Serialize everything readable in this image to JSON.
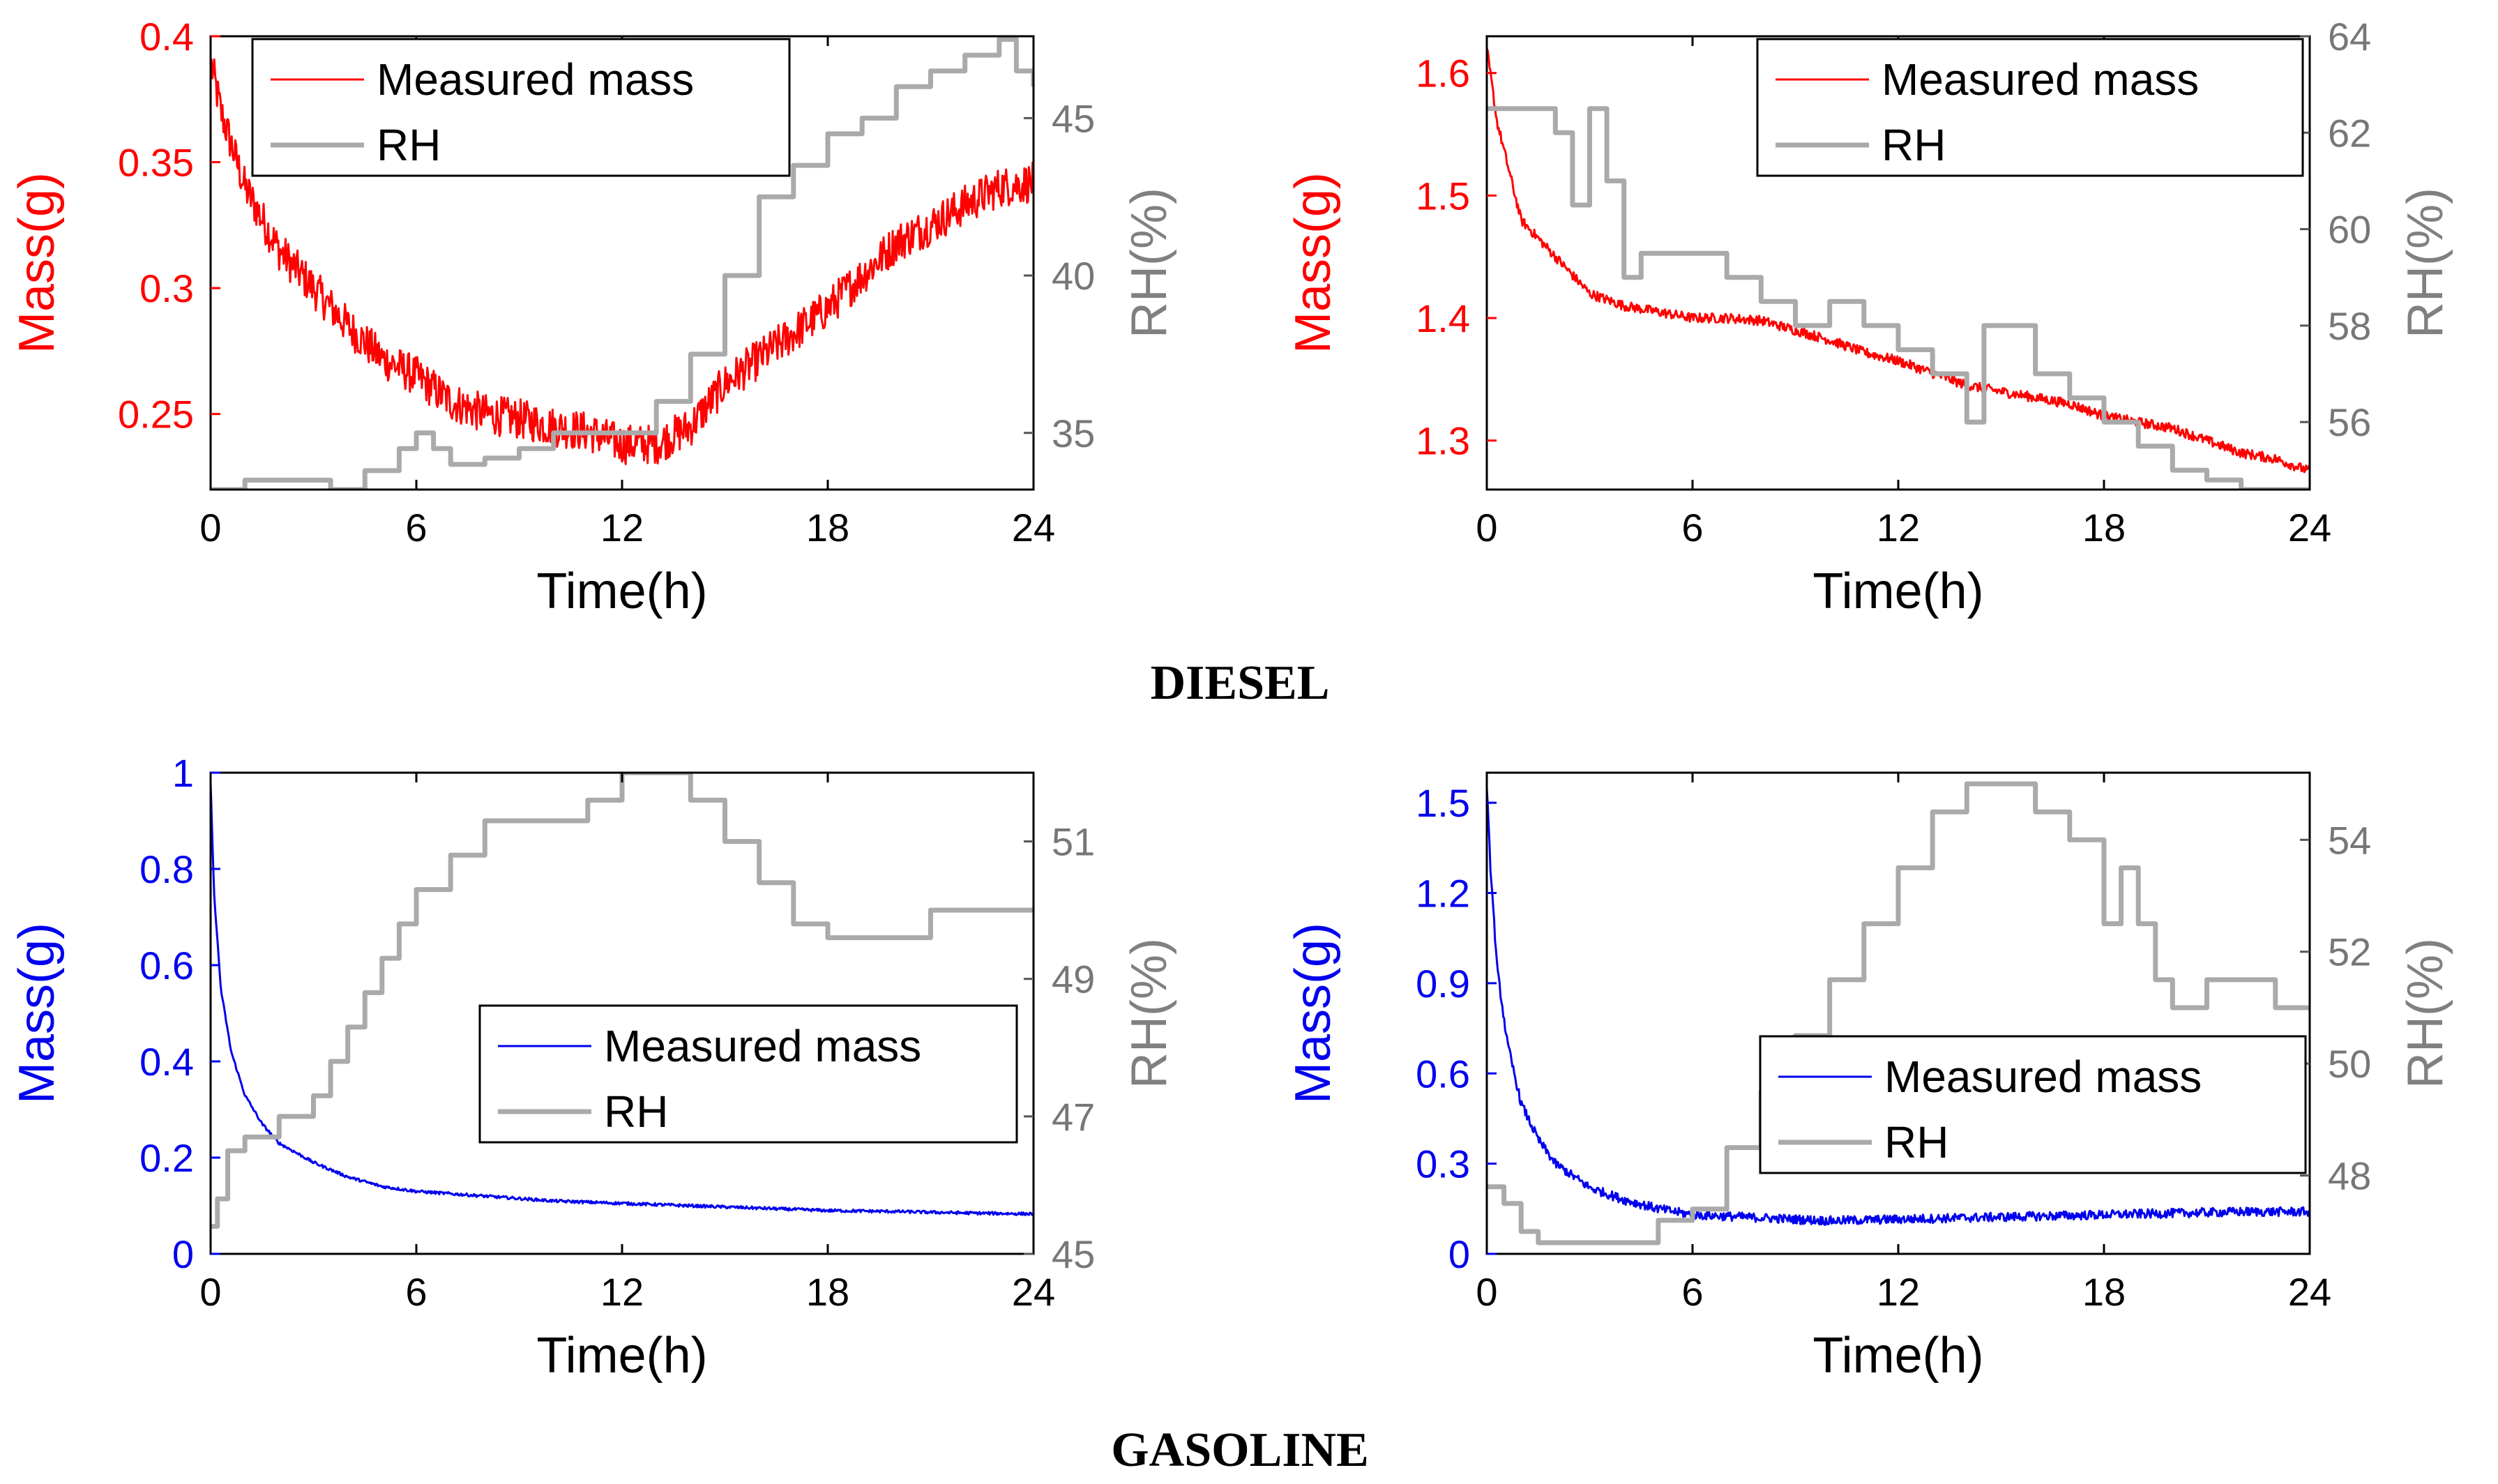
{
  "group_titles": {
    "diesel": "DIESEL",
    "gasoline": "GASOLINE"
  },
  "colors": {
    "diesel_mass": "#ff0000",
    "gasoline_mass": "#0000ee",
    "rh": "#aaaaaa",
    "axis": "#000000"
  },
  "chart_data": [
    {
      "type": "line",
      "group": "DIESEL",
      "title": "",
      "xlabel": "Time(h)",
      "ylabel": "Mass(g)",
      "y2label": "RH(%)",
      "xlim": [
        0,
        24
      ],
      "xticks": [
        0,
        6,
        12,
        18,
        24
      ],
      "ylim": [
        0.22,
        0.4
      ],
      "yticks": [
        0.25,
        0.3,
        0.35,
        0.4
      ],
      "y2lim": [
        33.2,
        47.6
      ],
      "y2ticks": [
        35,
        40,
        45
      ],
      "legend": {
        "position": "top-center",
        "entries": [
          "Measured mass",
          "RH"
        ]
      },
      "series": [
        {
          "name": "Measured mass",
          "axis": "left",
          "color": "#ff0000",
          "noise": 0.008,
          "x": [
            0,
            0.3,
            1,
            2,
            3,
            4,
            5,
            6,
            7,
            8,
            9,
            10,
            11,
            12,
            13,
            14,
            15,
            16,
            17,
            18,
            19,
            20,
            21,
            22,
            23,
            24
          ],
          "y": [
            0.39,
            0.37,
            0.34,
            0.315,
            0.3,
            0.285,
            0.272,
            0.265,
            0.255,
            0.25,
            0.248,
            0.245,
            0.243,
            0.238,
            0.238,
            0.245,
            0.262,
            0.272,
            0.282,
            0.292,
            0.305,
            0.318,
            0.325,
            0.333,
            0.34,
            0.342
          ]
        },
        {
          "name": "RH",
          "axis": "right",
          "color": "#aaaaaa",
          "step": true,
          "x": [
            0,
            1,
            2,
            3.5,
            4.5,
            5.5,
            6,
            6.5,
            7,
            8,
            9,
            10,
            11,
            12,
            13,
            14,
            15,
            16,
            17,
            18,
            19,
            20,
            21,
            22,
            23,
            23.5,
            24
          ],
          "y": [
            33.2,
            33.5,
            33.5,
            33.2,
            33.8,
            34.5,
            35.0,
            34.5,
            34.0,
            34.2,
            34.5,
            35.0,
            35.0,
            35.0,
            36.0,
            37.5,
            40.0,
            42.5,
            43.5,
            44.5,
            45.0,
            46.0,
            46.5,
            47.0,
            47.5,
            46.5,
            46.0
          ]
        }
      ]
    },
    {
      "type": "line",
      "group": "DIESEL",
      "title": "",
      "xlabel": "Time(h)",
      "ylabel": "Mass(g)",
      "y2label": "RH(%)",
      "xlim": [
        0,
        24
      ],
      "xticks": [
        0,
        6,
        12,
        18,
        24
      ],
      "ylim": [
        1.26,
        1.63
      ],
      "yticks": [
        1.3,
        1.4,
        1.5,
        1.6
      ],
      "y2lim": [
        54.6,
        64
      ],
      "y2ticks": [
        56,
        58,
        60,
        62,
        64
      ],
      "legend": {
        "position": "top-right",
        "entries": [
          "Measured mass",
          "RH"
        ]
      },
      "series": [
        {
          "name": "Measured mass",
          "axis": "left",
          "color": "#ff0000",
          "noise": 0.004,
          "x": [
            0,
            0.3,
            1,
            2,
            3,
            4,
            5,
            6,
            7,
            8,
            9,
            10,
            11,
            12,
            13,
            14,
            15,
            16,
            17,
            18,
            19,
            20,
            21,
            22,
            23,
            24
          ],
          "y": [
            1.62,
            1.56,
            1.48,
            1.45,
            1.42,
            1.41,
            1.405,
            1.4,
            1.4,
            1.398,
            1.39,
            1.382,
            1.372,
            1.365,
            1.355,
            1.345,
            1.34,
            1.335,
            1.33,
            1.32,
            1.315,
            1.31,
            1.3,
            1.29,
            1.285,
            1.275
          ]
        },
        {
          "name": "RH",
          "axis": "right",
          "color": "#aaaaaa",
          "step": true,
          "x": [
            0,
            0.3,
            1,
            2,
            2.5,
            3,
            3.5,
            4,
            4.5,
            5,
            6,
            7,
            8,
            9,
            10,
            11,
            12,
            13,
            14,
            14.5,
            15,
            16,
            17,
            18,
            19,
            20,
            21,
            22,
            23,
            24
          ],
          "y": [
            62.5,
            62.5,
            62.5,
            62.0,
            60.5,
            62.5,
            61.0,
            59.0,
            59.5,
            59.5,
            59.5,
            59.0,
            58.5,
            58.0,
            58.5,
            58.0,
            57.5,
            57.0,
            56.0,
            58.0,
            58.0,
            57.0,
            56.5,
            56.0,
            55.5,
            55.0,
            54.8,
            54.6,
            54.6,
            54.6
          ]
        }
      ]
    },
    {
      "type": "line",
      "group": "GASOLINE",
      "title": "",
      "xlabel": "Time(h)",
      "ylabel": "Mass(g)",
      "y2label": "RH(%)",
      "xlim": [
        0,
        24
      ],
      "xticks": [
        0,
        6,
        12,
        18,
        24
      ],
      "ylim": [
        0,
        1
      ],
      "yticks": [
        0,
        0.2,
        0.4,
        0.6,
        0.8,
        1
      ],
      "y2lim": [
        45,
        52
      ],
      "y2ticks": [
        45,
        47,
        49,
        51
      ],
      "legend": {
        "position": "center-right",
        "entries": [
          "Measured mass",
          "RH"
        ]
      },
      "series": [
        {
          "name": "Measured mass",
          "axis": "left",
          "color": "#0000ee",
          "noise": 0.003,
          "x": [
            0,
            0.1,
            0.3,
            0.6,
            1,
            1.5,
            2,
            3,
            4,
            5,
            6,
            8,
            10,
            12,
            14,
            16,
            18,
            20,
            22,
            24
          ],
          "y": [
            0.98,
            0.75,
            0.55,
            0.42,
            0.33,
            0.27,
            0.23,
            0.19,
            0.16,
            0.14,
            0.13,
            0.12,
            0.11,
            0.105,
            0.1,
            0.095,
            0.09,
            0.088,
            0.085,
            0.083
          ]
        },
        {
          "name": "RH",
          "axis": "right",
          "color": "#aaaaaa",
          "step": true,
          "x": [
            0,
            0.2,
            0.5,
            1,
            2,
            3,
            3.5,
            4,
            4.5,
            5,
            5.5,
            6,
            7,
            8,
            9,
            10,
            11,
            12,
            13,
            14,
            15,
            16,
            17,
            18,
            19,
            20,
            21,
            22,
            23,
            24
          ],
          "y": [
            45.4,
            45.8,
            46.5,
            46.7,
            47.0,
            47.3,
            47.8,
            48.3,
            48.8,
            49.3,
            49.8,
            50.3,
            50.8,
            51.3,
            51.3,
            51.3,
            51.6,
            52.0,
            52.0,
            51.6,
            51.0,
            50.4,
            49.8,
            49.6,
            49.6,
            49.6,
            50.0,
            50.0,
            50.0,
            50.0
          ]
        }
      ]
    },
    {
      "type": "line",
      "group": "GASOLINE",
      "title": "",
      "xlabel": "Time(h)",
      "ylabel": "Mass(g)",
      "y2label": "RH(%)",
      "xlim": [
        0,
        24
      ],
      "xticks": [
        0,
        6,
        12,
        18,
        24
      ],
      "ylim": [
        0,
        1.6
      ],
      "yticks": [
        0,
        0.3,
        0.6,
        0.9,
        1.2,
        1.5
      ],
      "y2lim": [
        46.6,
        55.2
      ],
      "y2ticks": [
        48,
        50,
        52,
        54
      ],
      "legend": {
        "position": "lower-right",
        "entries": [
          "Measured mass",
          "RH"
        ]
      },
      "series": [
        {
          "name": "Measured mass",
          "axis": "left",
          "color": "#0000ee",
          "noise": 0.015,
          "x": [
            0,
            0.1,
            0.3,
            0.6,
            1,
            1.5,
            2,
            3,
            4,
            5,
            6,
            8,
            10,
            12,
            14,
            16,
            18,
            20,
            22,
            24
          ],
          "y": [
            1.55,
            1.3,
            0.95,
            0.7,
            0.5,
            0.38,
            0.3,
            0.22,
            0.18,
            0.15,
            0.13,
            0.12,
            0.11,
            0.115,
            0.12,
            0.125,
            0.13,
            0.135,
            0.14,
            0.14
          ]
        },
        {
          "name": "RH",
          "axis": "right",
          "color": "#aaaaaa",
          "step": true,
          "x": [
            0,
            0.5,
            1,
            1.5,
            2,
            3,
            4,
            5,
            6,
            7,
            8,
            9,
            10,
            11,
            12,
            13,
            14,
            15,
            16,
            17,
            18,
            18.5,
            19,
            19.5,
            20,
            21,
            22,
            23,
            24
          ],
          "y": [
            47.8,
            47.5,
            47.0,
            46.8,
            46.8,
            46.8,
            46.8,
            47.2,
            47.4,
            48.5,
            49.5,
            50.5,
            51.5,
            52.5,
            53.5,
            54.5,
            55.0,
            55.0,
            54.5,
            54.0,
            52.5,
            53.5,
            52.5,
            51.5,
            51.0,
            51.5,
            51.5,
            51.0,
            51.0
          ]
        }
      ]
    }
  ]
}
